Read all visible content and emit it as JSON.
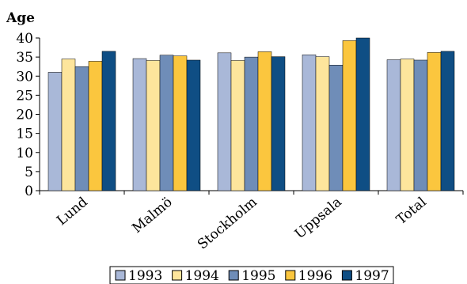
{
  "chart_data": {
    "type": "bar",
    "ylabel": "Age",
    "ylim": [
      0,
      40
    ],
    "yticks": [
      0,
      5,
      10,
      15,
      20,
      25,
      30,
      35,
      40
    ],
    "categories": [
      "Lund",
      "Malmö",
      "Stockholm",
      "Uppsala",
      "Total"
    ],
    "series": [
      {
        "name": "1993",
        "color": "#a9b8d8",
        "values": [
          31.0,
          34.6,
          36.1,
          35.6,
          34.3
        ]
      },
      {
        "name": "1994",
        "color": "#fde59c",
        "values": [
          34.5,
          34.1,
          34.1,
          35.1,
          34.5
        ]
      },
      {
        "name": "1995",
        "color": "#6f8db8",
        "values": [
          32.5,
          35.5,
          35.0,
          32.9,
          34.2
        ]
      },
      {
        "name": "1996",
        "color": "#fbc63e",
        "values": [
          33.9,
          35.3,
          36.4,
          39.3,
          36.2
        ]
      },
      {
        "name": "1997",
        "color": "#0f4e84",
        "values": [
          36.5,
          34.2,
          35.1,
          40.0,
          36.5
        ]
      }
    ],
    "legend_position": "bottom",
    "grid": false
  }
}
